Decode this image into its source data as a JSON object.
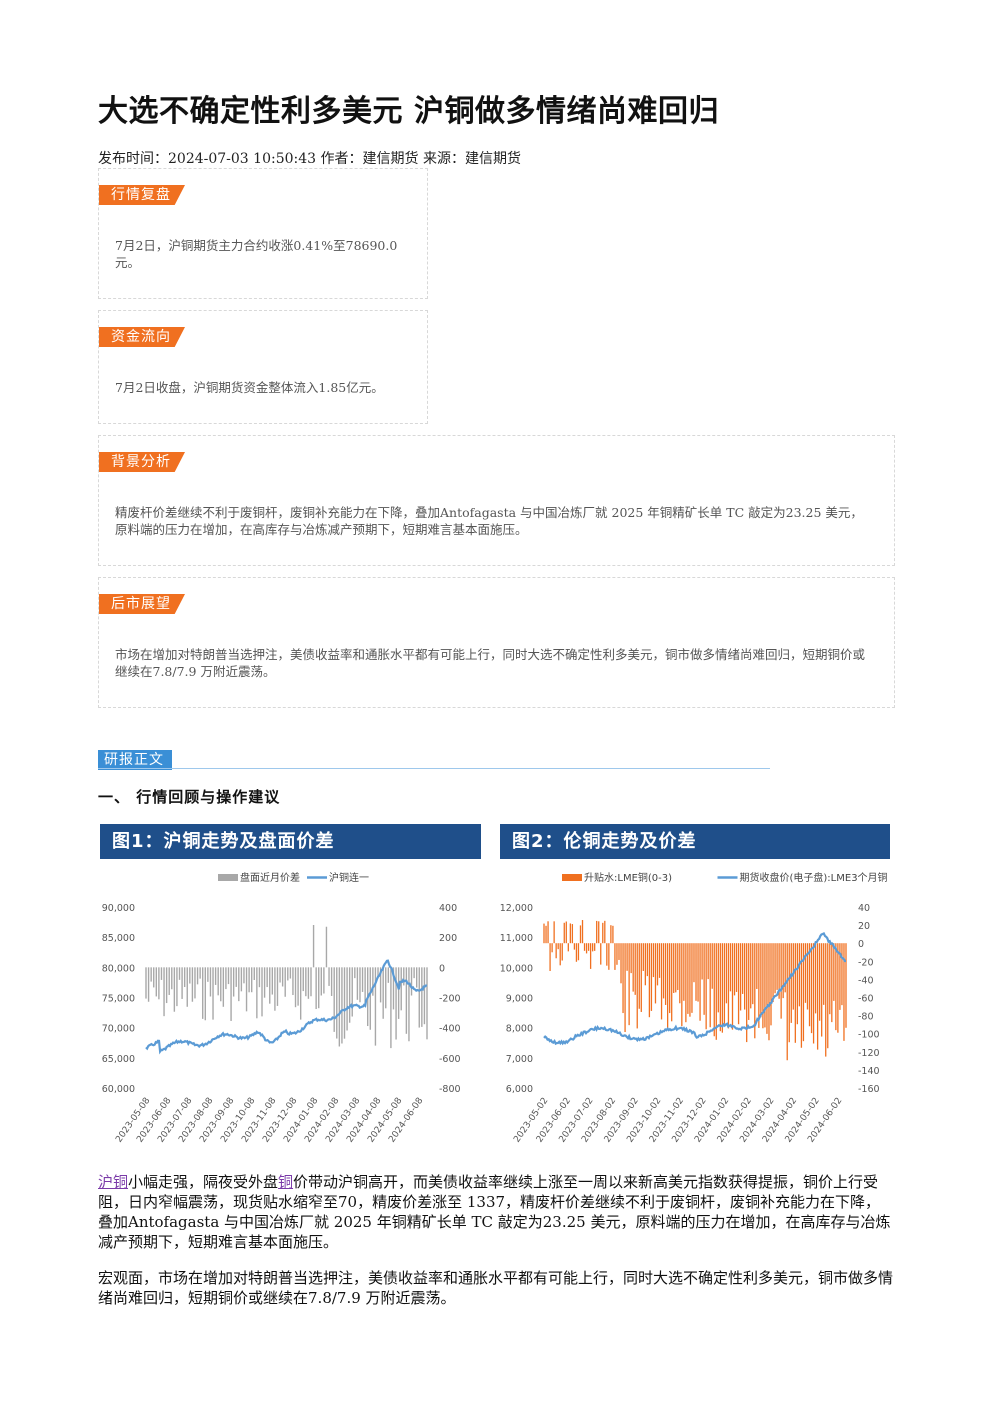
{
  "article": {
    "title": "大选不确定性利多美元 沪铜做多情绪尚难回归",
    "meta": "发布时间：2024-07-03 10:50:43 作者：建信期货 来源：建信期货"
  },
  "sections": [
    {
      "tag": "行情复盘",
      "text": "7月2日，沪铜期货主力合约收涨0.41%至78690.0元。"
    },
    {
      "tag": "资金流向",
      "text": "7月2日收盘，沪铜期货资金整体流入1.85亿元。"
    },
    {
      "tag": "背景分析",
      "text": "精废杆价差继续不利于废铜杆，废铜补充能力在下降，叠加Antofagasta 与中国冶炼厂就 2025 年铜精矿长单 TC 敲定为23.25 美元，原料端的压力在增加，在高库存与冶炼减产预期下，短期难言基本面施压。"
    },
    {
      "tag": "后市展望",
      "text": "市场在增加对特朗普当选押注，美债收益率和通胀水平都有可能上行，同时大选不确定性利多美元，铜市做多情绪尚难回归，短期铜价或继续在7.8/7.9 万附近震荡。"
    }
  ],
  "report": {
    "tag": "研报正文",
    "heading": "一、 行情回顾与操作建议"
  },
  "charts": [
    {
      "header": "图1：沪铜走势及盘面价差",
      "legend": [
        "盘面近月价差",
        "沪铜连一"
      ],
      "left_ticks": [
        "90,000",
        "85,000",
        "80,000",
        "75,000",
        "70,000",
        "65,000",
        "60,000"
      ],
      "right_ticks": [
        "400",
        "200",
        "0",
        "-200",
        "-400",
        "-600",
        "-800"
      ],
      "x_ticks": [
        "2023-05-08",
        "2023-06-08",
        "2023-07-08",
        "2023-08-08",
        "2023-09-08",
        "2023-10-08",
        "2023-11-08",
        "2023-12-08",
        "2024-01-08",
        "2024-02-08",
        "2024-03-08",
        "2024-04-08",
        "2024-05-08",
        "2024-06-08"
      ]
    },
    {
      "header": "图2：伦铜走势及价差",
      "legend": [
        "升贴水:LME铜(0-3)",
        "期货收盘价(电子盘):LME3个月铜"
      ],
      "left_ticks": [
        "12,000",
        "11,000",
        "10,000",
        "9,000",
        "8,000",
        "7,000",
        "6,000"
      ],
      "right_ticks": [
        "40",
        "20",
        "0",
        "-20",
        "-40",
        "-60",
        "-80",
        "-100",
        "-120",
        "-140",
        "-160"
      ],
      "x_ticks": [
        "2023-05-02",
        "2023-06-02",
        "2023-07-02",
        "2023-08-02",
        "2023-09-02",
        "2023-10-02",
        "2023-11-02",
        "2023-12-02",
        "2024-01-02",
        "2024-02-02",
        "2024-03-02",
        "2024-04-02",
        "2024-05-02",
        "2024-06-02"
      ]
    }
  ],
  "body": {
    "p1_link1": "沪铜",
    "p1_part1": "小幅走强，隔夜受外盘",
    "p1_link2": "铜",
    "p1_part2": "价带动沪铜高开，而美债收益率继续上涨至一周以来新高美元指数获得提振，铜价上行受阻，日内窄幅震荡，现货贴水缩窄至70，精废价差涨至 1337，精废杆价差继续不利于废铜杆，废铜补充能力在下降，叠加Antofagasta 与中国冶炼厂就 2025 年铜精矿长单 TC 敲定为23.25 美元，原料端的压力在增加，在高库存与冶炼减产预期下，短期难言基本面施压。",
    "p2": "宏观面，市场在增加对特朗普当选押注，美债收益率和通胀水平都有可能上行，同时大选不确定性利多美元，铜市做多情绪尚难回归，短期铜价或继续在7.8/7.9 万附近震荡。"
  },
  "colors": {
    "orange": "#f07020",
    "blue": "#3a8fd6",
    "navy": "#1f4f8a",
    "gray_bar": "#a8a8a8",
    "line_blue": "#5b9bd5"
  }
}
